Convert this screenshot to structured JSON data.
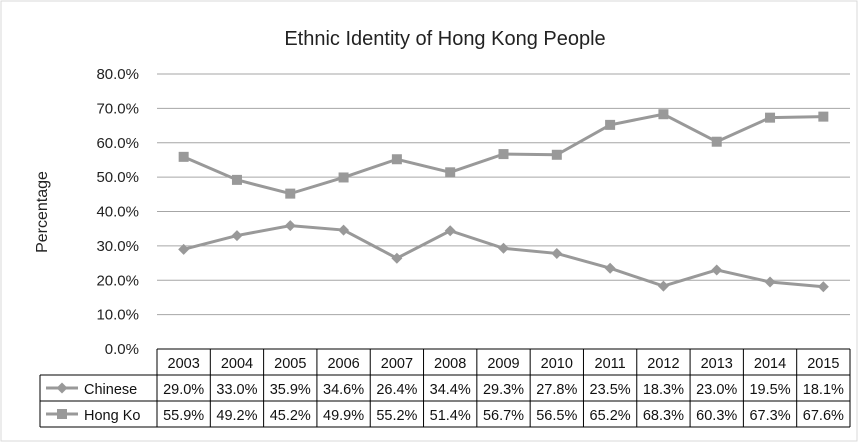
{
  "chart_data": {
    "type": "line",
    "title": "Ethnic Identity of Hong Kong People",
    "ylabel": "Percentage",
    "xlabel": "",
    "ylim": [
      0,
      80
    ],
    "yticks": [
      "0.0%",
      "10.0%",
      "20.0%",
      "30.0%",
      "40.0%",
      "50.0%",
      "60.0%",
      "70.0%",
      "80.0%"
    ],
    "grid": true,
    "legend": "data-table",
    "categories": [
      "2003",
      "2004",
      "2005",
      "2006",
      "2007",
      "2008",
      "2009",
      "2010",
      "2011",
      "2012",
      "2013",
      "2014",
      "2015"
    ],
    "series": [
      {
        "name": "Chinese",
        "marker": "diamond",
        "color": "#999999",
        "values": [
          29.0,
          33.0,
          35.9,
          34.6,
          26.4,
          34.4,
          29.3,
          27.8,
          23.5,
          18.3,
          23.0,
          19.5,
          18.1
        ],
        "labels": [
          "29.0%",
          "33.0%",
          "35.9%",
          "34.6%",
          "26.4%",
          "34.4%",
          "29.3%",
          "27.8%",
          "23.5%",
          "18.3%",
          "23.0%",
          "19.5%",
          "18.1%"
        ]
      },
      {
        "name": "Hong Ko",
        "marker": "square",
        "color": "#999999",
        "values": [
          55.9,
          49.2,
          45.2,
          49.9,
          55.2,
          51.4,
          56.7,
          56.5,
          65.2,
          68.3,
          60.3,
          67.3,
          67.6
        ],
        "labels": [
          "55.9%",
          "49.2%",
          "45.2%",
          "49.9%",
          "55.2%",
          "51.4%",
          "56.7%",
          "56.5%",
          "65.2%",
          "68.3%",
          "60.3%",
          "67.3%",
          "67.6%"
        ]
      }
    ]
  }
}
